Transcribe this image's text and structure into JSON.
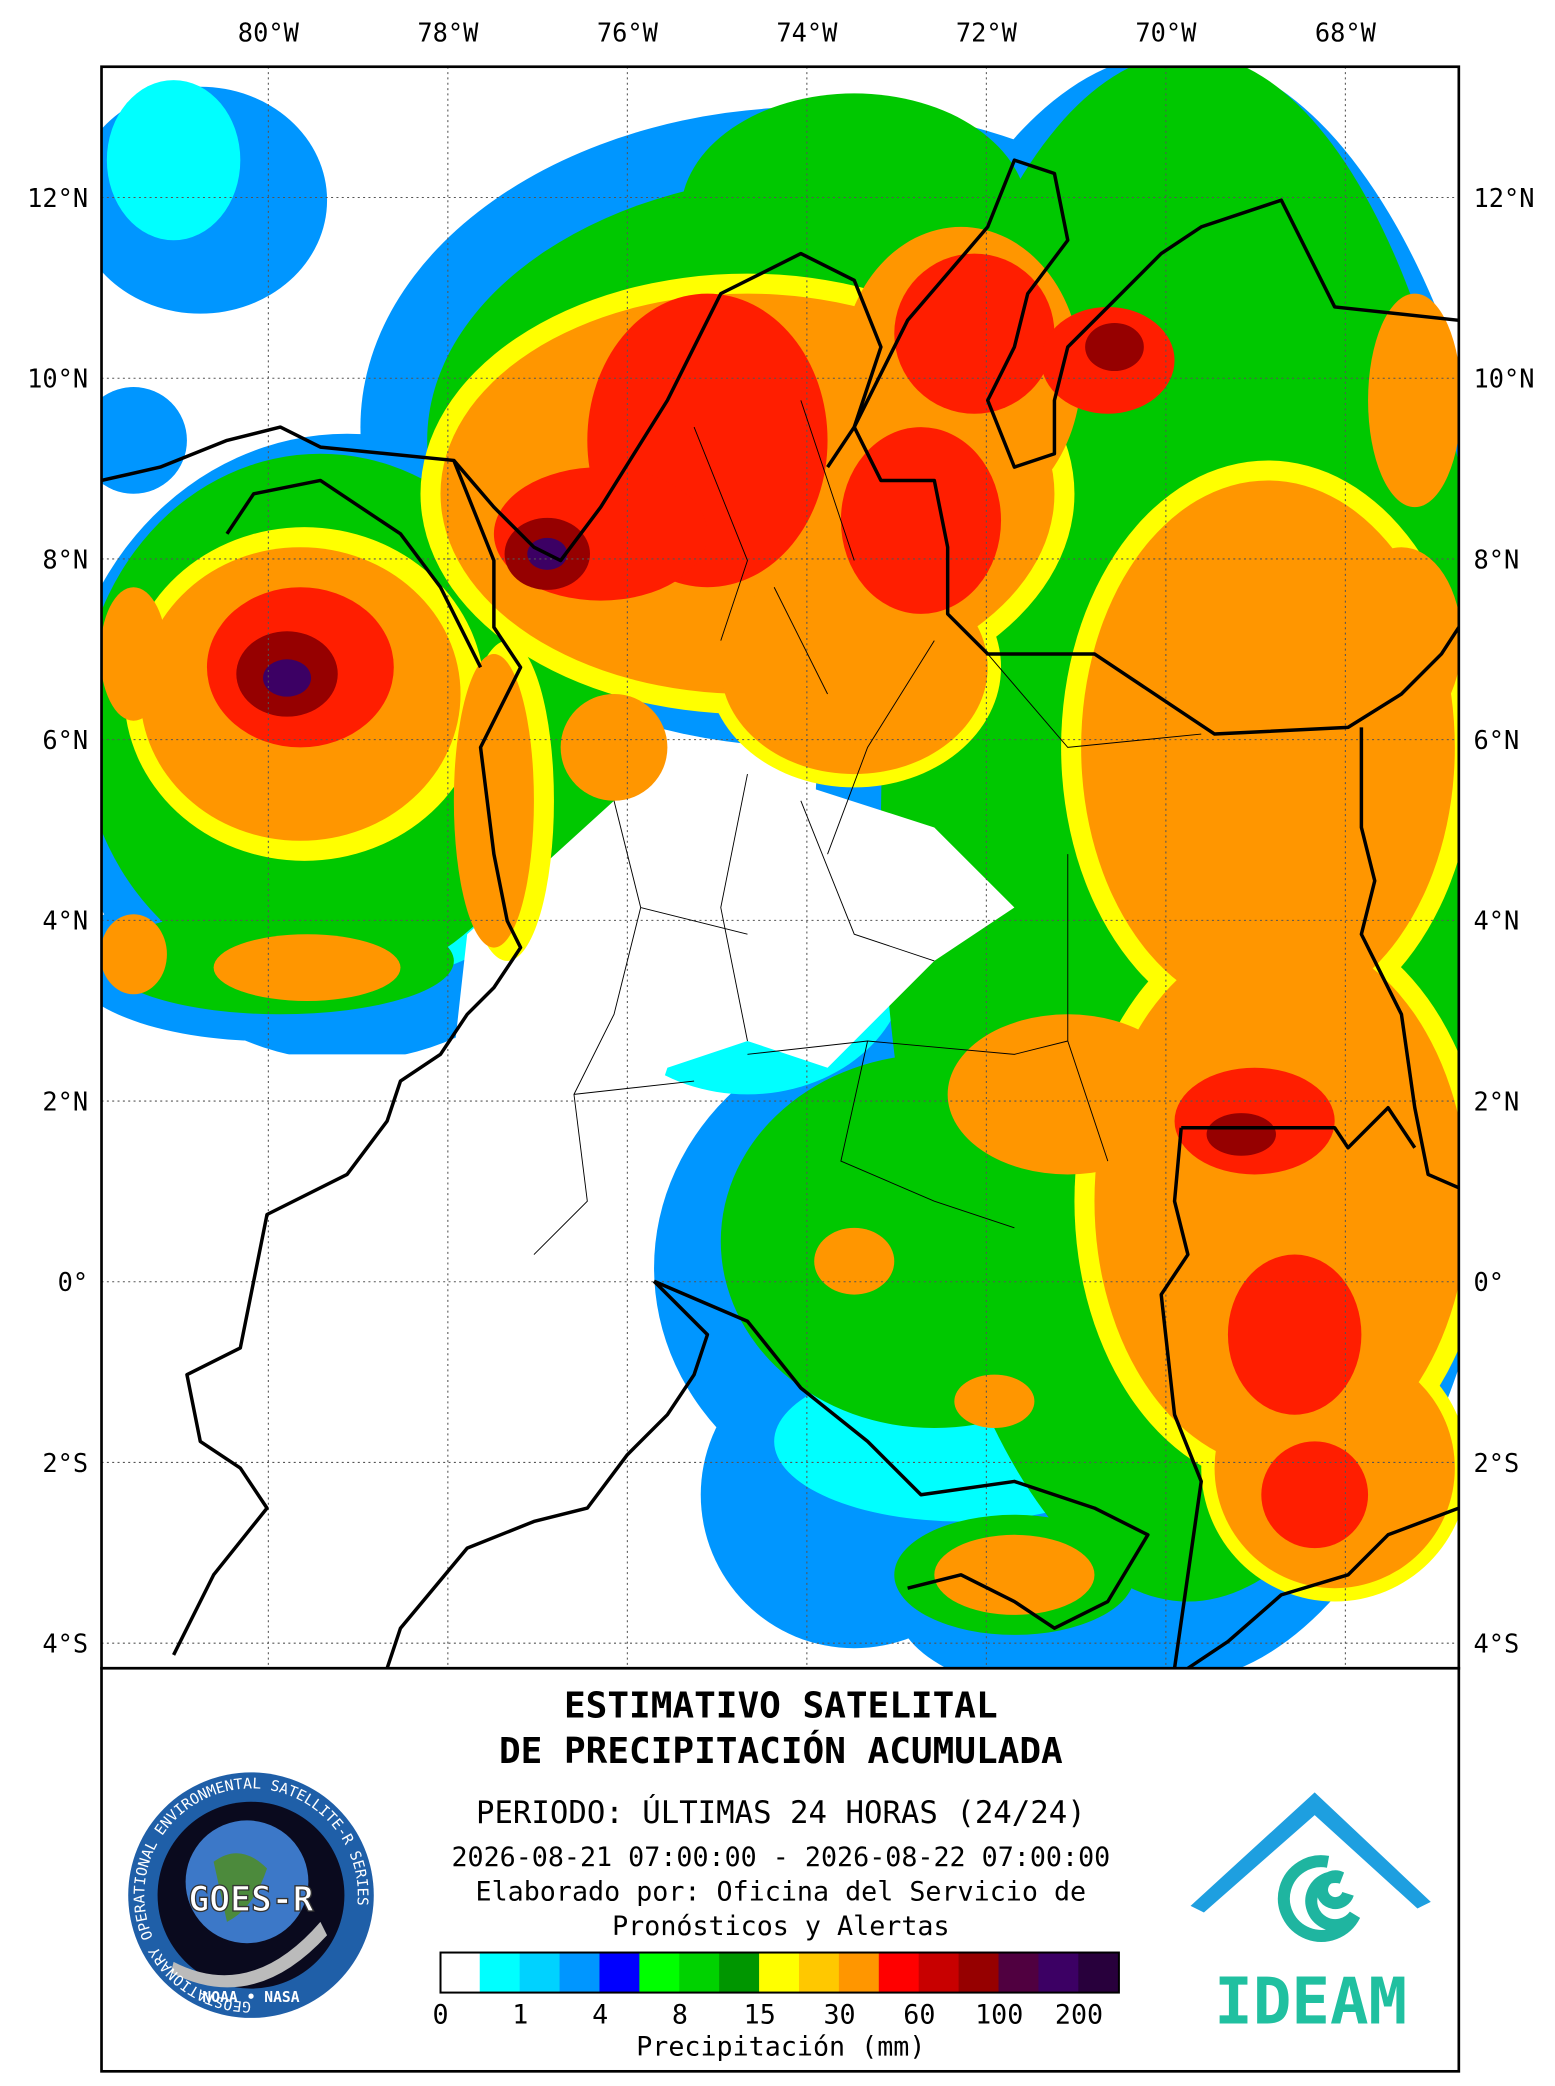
{
  "map": {
    "lon_labels": [
      "80°W",
      "78°W",
      "76°W",
      "74°W",
      "72°W",
      "70°W",
      "68°W"
    ],
    "lat_labels": [
      "12°N",
      "10°N",
      "8°N",
      "6°N",
      "4°N",
      "2°N",
      "0°",
      "2°S",
      "4°S"
    ]
  },
  "title": {
    "line1": "ESTIMATIVO SATELITAL",
    "line2": "DE PRECIPITACIÓN ACUMULADA",
    "period": "PERIODO: ÚLTIMAS 24 HORAS (24/24)",
    "dates": "2026-08-21 07:00:00 - 2026-08-22 07:00:00",
    "credit1": "Elaborado por: Oficina del Servicio de",
    "credit2": "Pronósticos y Alertas"
  },
  "legend": {
    "colors": [
      "#ffffff",
      "#00ffff",
      "#00d2ff",
      "#0096ff",
      "#0000ff",
      "#00ff00",
      "#00d200",
      "#009600",
      "#ffff00",
      "#ffc800",
      "#ff9600",
      "#ff0000",
      "#c80000",
      "#960000",
      "#500040",
      "#3c0064",
      "#28003c"
    ],
    "labels": [
      0,
      1,
      4,
      8,
      15,
      30,
      60,
      100,
      200
    ],
    "title": "Precipitación (mm)"
  },
  "logos": {
    "goes": {
      "name": "GOES-R",
      "ring": "GEOSTATIONARY OPERATIONAL ENVIRONMENTAL SATELLITE-R SERIES",
      "agencies": "NOAA • NASA"
    },
    "ideam": "IDEAM"
  }
}
